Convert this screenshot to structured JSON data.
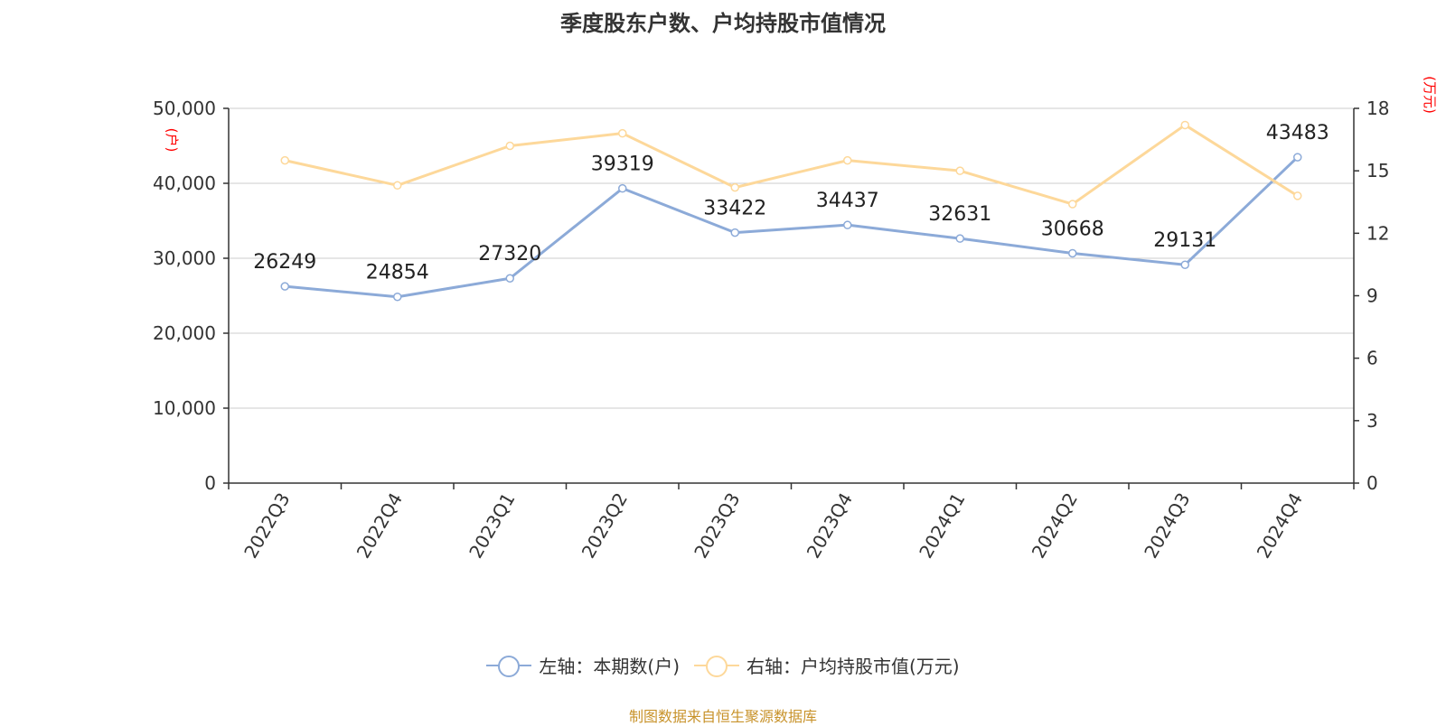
{
  "title": "季度股东户数、户均持股市值情况",
  "source": "制图数据来自恒生聚源数据库",
  "chart_data": {
    "type": "line",
    "title": "季度股东户数、户均持股市值情况",
    "categories": [
      "2022Q3",
      "2022Q4",
      "2023Q1",
      "2023Q2",
      "2023Q3",
      "2023Q4",
      "2024Q1",
      "2024Q2",
      "2024Q3",
      "2024Q4"
    ],
    "left_axis": {
      "unit": "(户)",
      "min": 0,
      "max": 50000,
      "ticks": [
        "0",
        "10,000",
        "20,000",
        "30,000",
        "40,000",
        "50,000"
      ],
      "tick_values": [
        0,
        10000,
        20000,
        30000,
        40000,
        50000
      ]
    },
    "right_axis": {
      "unit": "(万元)",
      "min": 0,
      "max": 18,
      "ticks": [
        "0",
        "3",
        "6",
        "9",
        "12",
        "15",
        "18"
      ],
      "tick_values": [
        0,
        3,
        6,
        9,
        12,
        15,
        18
      ]
    },
    "grid": true,
    "legend_position": "bottom-center",
    "series": [
      {
        "name": "左轴：本期数(户)",
        "axis": "left",
        "color": "#8caad8",
        "values": [
          26249,
          24854,
          27320,
          39319,
          33422,
          34437,
          32631,
          30668,
          29131,
          43483
        ],
        "labels": [
          "26249",
          "24854",
          "27320",
          "39319",
          "33422",
          "34437",
          "32631",
          "30668",
          "29131",
          "43483"
        ]
      },
      {
        "name": "右轴：户均持股市值(万元)",
        "axis": "right",
        "color": "#fdd89a",
        "values": [
          15.5,
          14.3,
          16.2,
          16.8,
          14.2,
          15.5,
          15.0,
          13.4,
          17.2,
          13.8
        ]
      }
    ]
  }
}
